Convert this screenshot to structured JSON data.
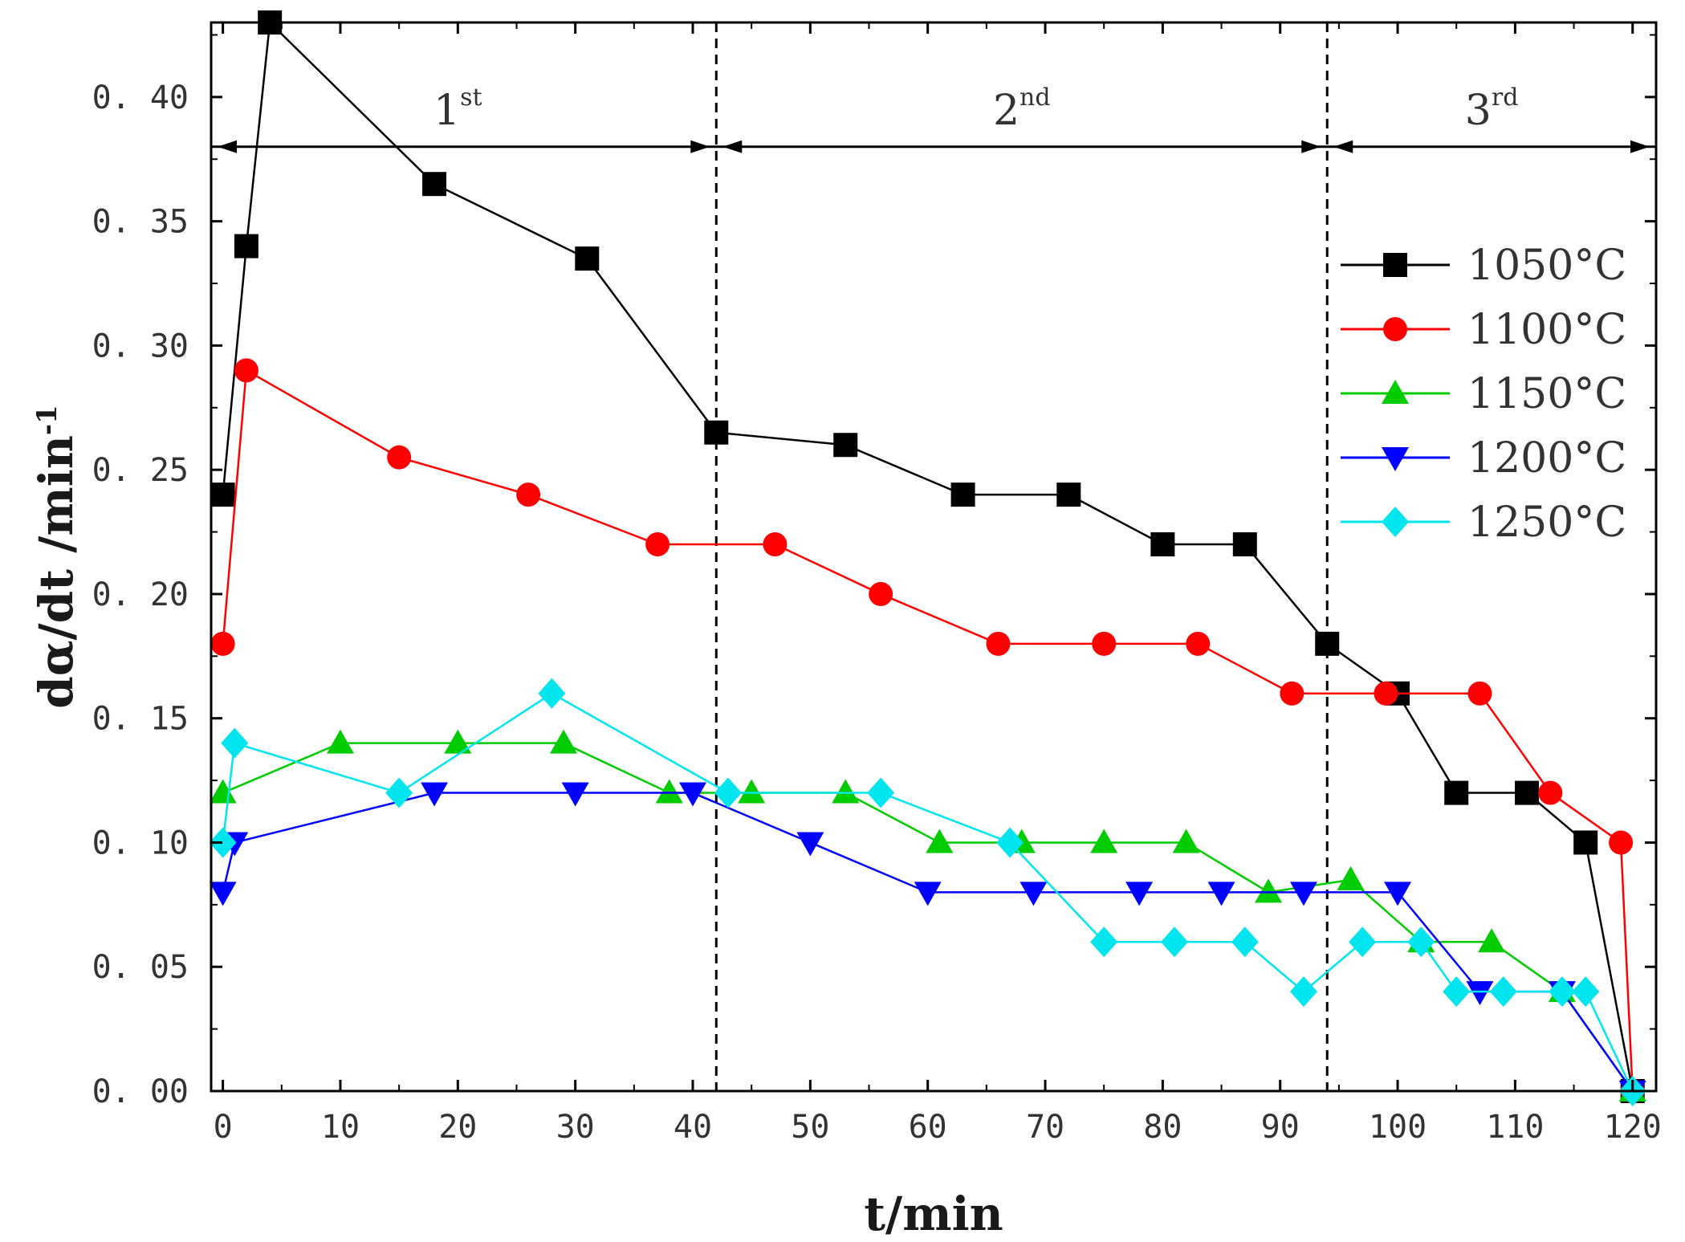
{
  "chart_data": {
    "type": "line",
    "xlabel": "t/min",
    "ylabel_main": "dα/dt /min",
    "ylabel_sup": "-1",
    "xlim": [
      -1,
      122
    ],
    "ylim": [
      0,
      0.43
    ],
    "xticks": [
      0,
      10,
      20,
      30,
      40,
      50,
      60,
      70,
      80,
      90,
      100,
      110,
      120
    ],
    "yticks": [
      0.0,
      0.05,
      0.1,
      0.15,
      0.2,
      0.25,
      0.3,
      0.35,
      0.4
    ],
    "ytick_labels": [
      "0. 00",
      "0. 05",
      "0. 10",
      "0. 15",
      "0. 20",
      "0. 25",
      "0. 30",
      "0. 35",
      "0. 40"
    ],
    "grid": false,
    "legend_position": "top-right",
    "stage_boundaries": [
      42,
      94
    ],
    "stage_arrow_y": 0.38,
    "stages": [
      {
        "base": "1",
        "sup": "st",
        "x_center": 20
      },
      {
        "base": "2",
        "sup": "nd",
        "x_center": 68
      },
      {
        "base": "3",
        "sup": "rd",
        "x_center": 108
      }
    ],
    "series": [
      {
        "name": "1050°C",
        "color": "#000000",
        "marker": "square",
        "x": [
          0,
          2,
          4,
          18,
          31,
          42,
          53,
          63,
          72,
          80,
          87,
          94,
          100,
          105,
          111,
          116,
          120
        ],
        "y": [
          0.24,
          0.34,
          0.43,
          0.365,
          0.335,
          0.265,
          0.26,
          0.24,
          0.24,
          0.22,
          0.22,
          0.18,
          0.16,
          0.12,
          0.12,
          0.1,
          0.0
        ]
      },
      {
        "name": "1100°C",
        "color": "#ff0000",
        "marker": "circle",
        "x": [
          0,
          2,
          15,
          26,
          37,
          47,
          56,
          66,
          75,
          83,
          91,
          99,
          107,
          113,
          119,
          120
        ],
        "y": [
          0.18,
          0.29,
          0.255,
          0.24,
          0.22,
          0.22,
          0.2,
          0.18,
          0.18,
          0.18,
          0.16,
          0.16,
          0.16,
          0.12,
          0.1,
          0.0
        ]
      },
      {
        "name": "1150°C",
        "color": "#00cc00",
        "marker": "triangle-up",
        "x": [
          0,
          10,
          20,
          29,
          38,
          45,
          53,
          61,
          68,
          75,
          82,
          89,
          96,
          102,
          108,
          114,
          120
        ],
        "y": [
          0.12,
          0.14,
          0.14,
          0.14,
          0.12,
          0.12,
          0.12,
          0.1,
          0.1,
          0.1,
          0.1,
          0.08,
          0.085,
          0.06,
          0.06,
          0.04,
          0.0
        ]
      },
      {
        "name": "1200°C",
        "color": "#0000ff",
        "marker": "triangle-down",
        "x": [
          0,
          1,
          18,
          30,
          40,
          50,
          60,
          69,
          78,
          85,
          92,
          100,
          107,
          114,
          120
        ],
        "y": [
          0.08,
          0.1,
          0.12,
          0.12,
          0.12,
          0.1,
          0.08,
          0.08,
          0.08,
          0.08,
          0.08,
          0.08,
          0.04,
          0.04,
          0.0
        ]
      },
      {
        "name": "1250°C",
        "color": "#00e5ee",
        "marker": "diamond",
        "x": [
          0,
          1,
          15,
          28,
          43,
          56,
          67,
          75,
          81,
          87,
          92,
          97,
          102,
          105,
          109,
          114,
          116,
          120
        ],
        "y": [
          0.1,
          0.14,
          0.12,
          0.16,
          0.12,
          0.12,
          0.1,
          0.06,
          0.06,
          0.06,
          0.04,
          0.06,
          0.06,
          0.04,
          0.04,
          0.04,
          0.04,
          0.0
        ]
      }
    ]
  }
}
